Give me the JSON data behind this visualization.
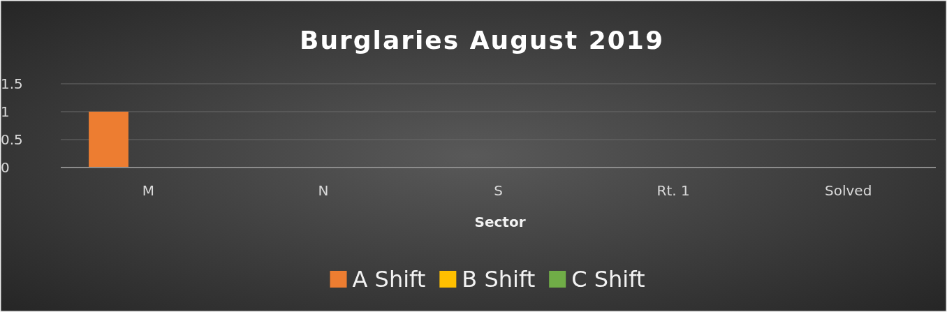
{
  "chart_data": {
    "type": "bar",
    "title": "Burglaries August 2019",
    "xlabel": "Sector",
    "categories": [
      "M",
      "N",
      "S",
      "Rt. 1",
      "Solved"
    ],
    "series": [
      {
        "name": "A Shift",
        "color": "#ed7d31",
        "values": [
          1,
          0,
          0,
          0,
          0
        ]
      },
      {
        "name": "B Shift",
        "color": "#ffc000",
        "values": [
          0,
          0,
          0,
          0,
          0
        ]
      },
      {
        "name": "C Shift",
        "color": "#70ad47",
        "values": [
          0,
          0,
          0,
          0,
          0
        ]
      }
    ],
    "ylim": [
      0,
      1.5
    ],
    "yticks": [
      0,
      0.5,
      1,
      1.5
    ],
    "grid": "y",
    "legend": "bottom"
  }
}
